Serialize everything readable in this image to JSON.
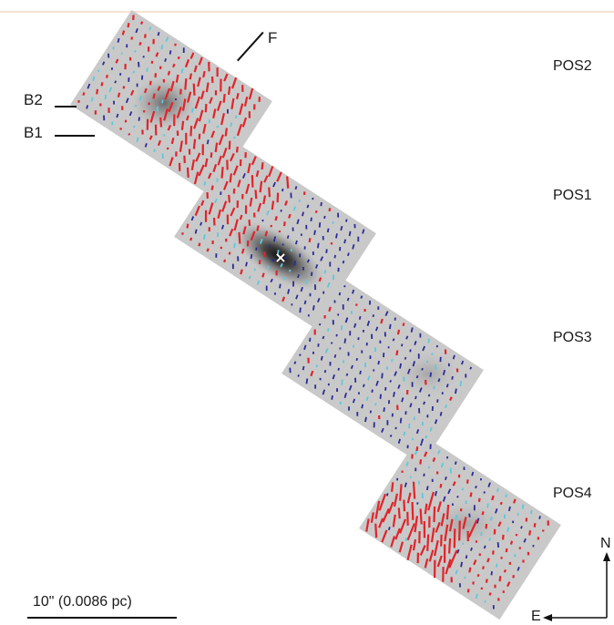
{
  "pointing_labels": [
    "POS2",
    "POS1",
    "POS3",
    "POS4"
  ],
  "feature_labels": {
    "f": "F",
    "b2": "B2",
    "b1": "B1"
  },
  "scale_bar_label": "10\" (0.0086 pc)",
  "compass": {
    "north": "N",
    "east": "E"
  },
  "source_marker": "×",
  "colors": {
    "vector_red": "#e0242a",
    "vector_blue": "#2b2a9a",
    "vector_cyan": "#5ec8dc",
    "tile_gray": "#c9c9c9"
  }
}
